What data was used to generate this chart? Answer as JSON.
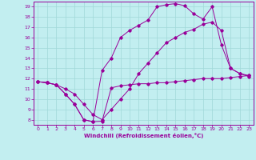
{
  "xlabel": "Windchill (Refroidissement éolien,°C)",
  "xlim": [
    -0.5,
    23.5
  ],
  "ylim": [
    7.5,
    19.5
  ],
  "xticks": [
    0,
    1,
    2,
    3,
    4,
    5,
    6,
    7,
    8,
    9,
    10,
    11,
    12,
    13,
    14,
    15,
    16,
    17,
    18,
    19,
    20,
    21,
    22,
    23
  ],
  "yticks": [
    8,
    9,
    10,
    11,
    12,
    13,
    14,
    15,
    16,
    17,
    18,
    19
  ],
  "bg_color": "#c2eef0",
  "line_color": "#990099",
  "grid_color": "#a0d8d8",
  "line1_x": [
    0,
    1,
    2,
    3,
    4,
    5,
    6,
    7,
    8,
    9,
    10,
    11,
    12,
    13,
    14,
    15,
    16,
    17,
    18,
    19,
    20,
    21,
    22,
    23
  ],
  "line1_y": [
    11.7,
    11.6,
    11.4,
    10.5,
    9.5,
    8.0,
    7.8,
    7.85,
    11.1,
    11.3,
    11.4,
    11.5,
    11.5,
    11.6,
    11.6,
    11.7,
    11.8,
    11.9,
    12.0,
    12.0,
    12.0,
    12.1,
    12.2,
    12.3
  ],
  "line2_x": [
    0,
    1,
    2,
    3,
    4,
    5,
    6,
    7,
    8,
    9,
    10,
    11,
    12,
    13,
    14,
    15,
    16,
    17,
    18,
    19,
    20,
    21,
    22,
    23
  ],
  "line2_y": [
    11.7,
    11.6,
    11.4,
    11.0,
    10.5,
    9.5,
    8.5,
    8.0,
    9.0,
    10.0,
    11.0,
    12.5,
    13.5,
    14.5,
    15.5,
    16.0,
    16.5,
    16.8,
    17.3,
    17.5,
    16.7,
    13.0,
    12.5,
    12.2
  ],
  "line3_x": [
    0,
    1,
    2,
    3,
    4,
    5,
    6,
    7,
    8,
    9,
    10,
    11,
    12,
    13,
    14,
    15,
    16,
    17,
    18,
    19,
    20,
    21,
    22,
    23
  ],
  "line3_y": [
    11.7,
    11.6,
    11.4,
    10.5,
    9.5,
    8.0,
    7.8,
    12.8,
    14.0,
    16.0,
    16.7,
    17.2,
    17.7,
    19.0,
    19.2,
    19.3,
    19.1,
    18.3,
    17.8,
    19.0,
    15.3,
    13.0,
    12.5,
    12.3
  ]
}
